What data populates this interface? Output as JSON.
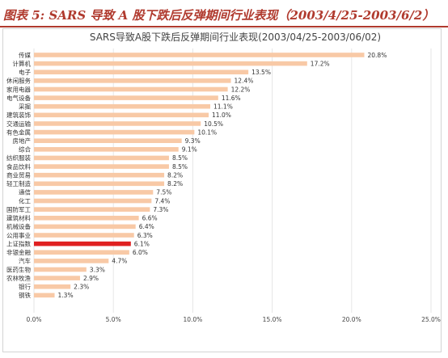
{
  "header": {
    "title": "图表 5: SARS 导致 A 股下跌后反弹期间行业表现（2003/4/25-2003/6/2）"
  },
  "chart_data": {
    "type": "bar",
    "orientation": "horizontal",
    "title": "SARS导致A股下跌后反弹期间行业表现(2003/04/25-2003/06/02)",
    "xlabel": "",
    "ylabel": "",
    "xlim": [
      0,
      0.25
    ],
    "x_ticks": [
      0,
      0.05,
      0.1,
      0.15,
      0.2,
      0.25
    ],
    "x_tick_labels": [
      "0.0%",
      "5.0%",
      "10.0%",
      "15.0%",
      "20.0%",
      "25.0%"
    ],
    "grid": "vertical",
    "legend": "none",
    "categories": [
      "传媒",
      "计算机",
      "电子",
      "休闲服务",
      "家用电器",
      "电气设备",
      "采掘",
      "建筑装饰",
      "交通运输",
      "有色金属",
      "房地产",
      "综合",
      "纺织服装",
      "食品饮料",
      "商业贸易",
      "轻工制造",
      "通信",
      "化工",
      "国防军工",
      "建筑材料",
      "机械设备",
      "公用事业",
      "上证指数",
      "非银金融",
      "汽车",
      "医药生物",
      "农林牧渔",
      "银行",
      "钢铁"
    ],
    "values": [
      0.208,
      0.172,
      0.135,
      0.124,
      0.122,
      0.116,
      0.111,
      0.11,
      0.105,
      0.101,
      0.093,
      0.091,
      0.085,
      0.085,
      0.082,
      0.082,
      0.075,
      0.074,
      0.073,
      0.066,
      0.064,
      0.063,
      0.061,
      0.06,
      0.047,
      0.033,
      0.029,
      0.023,
      0.013
    ],
    "value_labels": [
      "20.8%",
      "17.2%",
      "13.5%",
      "12.4%",
      "12.2%",
      "11.6%",
      "11.1%",
      "11.0%",
      "10.5%",
      "10.1%",
      "9.3%",
      "9.1%",
      "8.5%",
      "8.5%",
      "8.2%",
      "8.2%",
      "7.5%",
      "7.4%",
      "7.3%",
      "6.6%",
      "6.4%",
      "6.3%",
      "6.1%",
      "6.0%",
      "4.7%",
      "3.3%",
      "2.9%",
      "2.3%",
      "1.3%"
    ],
    "highlight_category": "上证指数",
    "colors": {
      "bar": "#f8c9a6",
      "highlight": "#e02020",
      "grid": "#e6e6e6"
    }
  }
}
